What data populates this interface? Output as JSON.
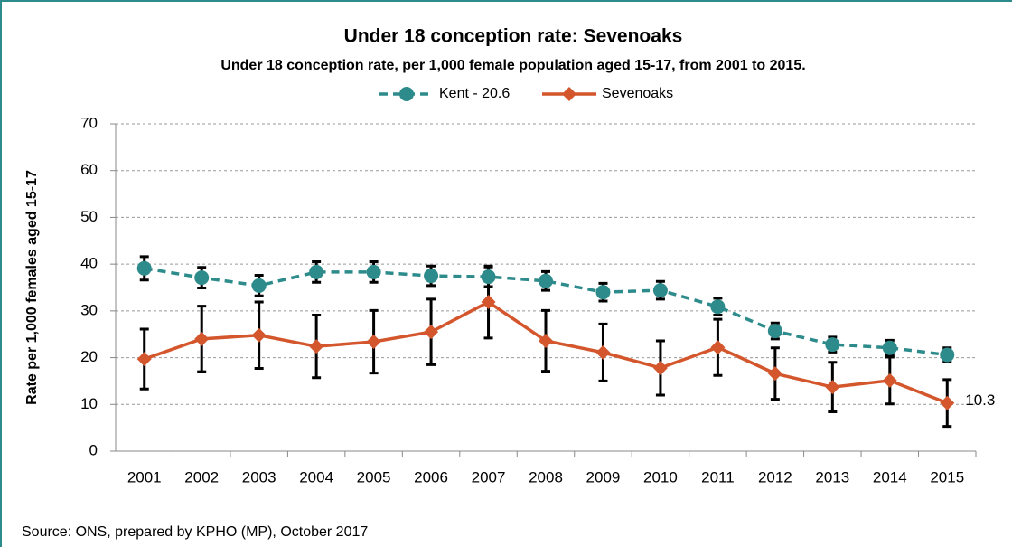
{
  "chart_data": {
    "type": "line",
    "title": "Under 18 conception rate: Sevenoaks",
    "subtitle": "Under 18 conception rate, per 1,000 female population aged 15-17, from 2001 to 2015.",
    "y_label": "Rate per 1,000 females aged 15-17",
    "source": "Source: ONS, prepared by KPHO (MP), October 2017",
    "categories": [
      "2001",
      "2002",
      "2003",
      "2004",
      "2005",
      "2006",
      "2007",
      "2008",
      "2009",
      "2010",
      "2011",
      "2012",
      "2013",
      "2014",
      "2015"
    ],
    "series": [
      {
        "name": "Kent - 20.6",
        "color": "#2e8b8b",
        "dashed": true,
        "marker": "circle",
        "values": [
          39.1,
          37.1,
          35.4,
          38.3,
          38.3,
          37.5,
          37.3,
          36.4,
          34.0,
          34.4,
          30.9,
          25.7,
          22.8,
          22.1,
          20.6
        ],
        "errors": [
          2.5,
          2.2,
          2.2,
          2.2,
          2.2,
          2.1,
          2.1,
          2.0,
          1.9,
          1.9,
          1.8,
          1.7,
          1.6,
          1.6,
          1.5
        ]
      },
      {
        "name": "Sevenoaks",
        "color": "#d4562c",
        "dashed": false,
        "marker": "diamond",
        "values": [
          19.7,
          24.0,
          24.8,
          22.4,
          23.4,
          25.5,
          31.9,
          23.6,
          21.1,
          17.8,
          22.2,
          16.6,
          13.7,
          15.1,
          10.3
        ],
        "errors": [
          6.4,
          7.0,
          7.1,
          6.7,
          6.7,
          7.0,
          7.7,
          6.5,
          6.1,
          5.8,
          6.0,
          5.5,
          5.3,
          5.0,
          5.0
        ]
      }
    ],
    "last_value_label_series": 1,
    "ylim": [
      0,
      70
    ],
    "yticks": [
      0,
      10,
      20,
      30,
      40,
      50,
      60,
      70
    ],
    "grid": true
  }
}
